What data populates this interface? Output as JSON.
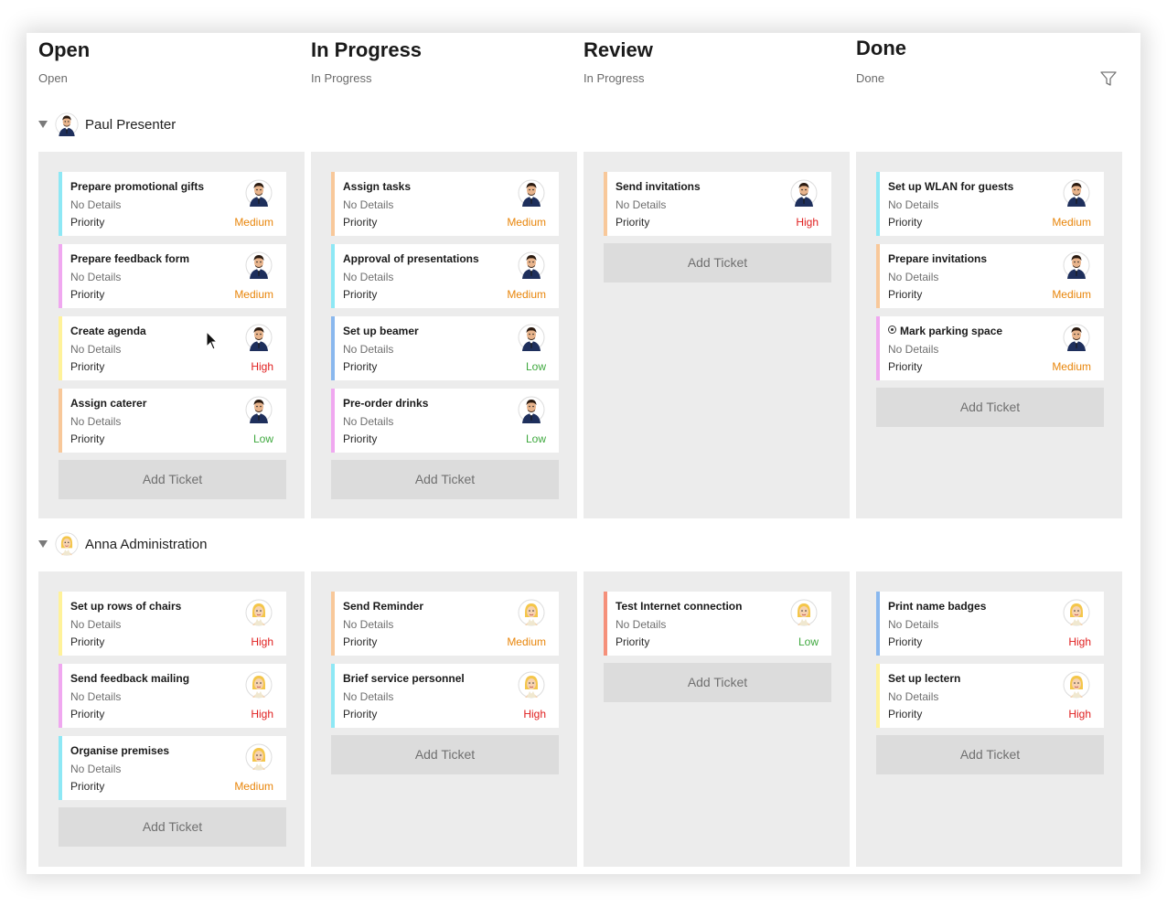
{
  "columns": [
    {
      "title": "Open",
      "subtitle": "Open"
    },
    {
      "title": "In Progress",
      "subtitle": "In Progress"
    },
    {
      "title": "Review",
      "subtitle": "In Progress"
    },
    {
      "title": "Done",
      "subtitle": "Done"
    }
  ],
  "colors": {
    "medium": "#e8850a",
    "high": "#e02020",
    "low": "#3ea83e",
    "lane_bg": "#ececec",
    "cyan": "#8ee8f5",
    "pink": "#f0a8f0",
    "yellow": "#fff29a",
    "peach": "#f8c89a",
    "blue": "#8ab8ee",
    "salmon": "#f5907a"
  },
  "labels": {
    "details": "No Details",
    "priority": "Priority",
    "add_ticket": "Add Ticket"
  },
  "groups": [
    {
      "name": "Paul Presenter",
      "avatar": "man-avatar-icon",
      "lanes": [
        [
          {
            "title": "Prepare promotional gifts",
            "priority": "Medium",
            "accent": "cyan"
          },
          {
            "title": "Prepare feedback form",
            "priority": "Medium",
            "accent": "pink"
          },
          {
            "title": "Create agenda",
            "priority": "High",
            "accent": "yellow"
          },
          {
            "title": "Assign caterer",
            "priority": "Low",
            "accent": "peach"
          }
        ],
        [
          {
            "title": "Assign tasks",
            "priority": "Medium",
            "accent": "peach"
          },
          {
            "title": "Approval of presentations",
            "priority": "Medium",
            "accent": "cyan"
          },
          {
            "title": "Set up beamer",
            "priority": "Low",
            "accent": "blue"
          },
          {
            "title": "Pre-order drinks",
            "priority": "Low",
            "accent": "pink"
          }
        ],
        [
          {
            "title": "Send invitations",
            "priority": "High",
            "accent": "peach"
          }
        ],
        [
          {
            "title": "Set up WLAN for guests",
            "priority": "Medium",
            "accent": "cyan"
          },
          {
            "title": "Prepare invitations",
            "priority": "Medium",
            "accent": "peach"
          },
          {
            "title": "Mark parking space",
            "priority": "Medium",
            "accent": "pink",
            "icon": "target-icon"
          }
        ]
      ]
    },
    {
      "name": "Anna Administration",
      "avatar": "woman-avatar-icon",
      "lanes": [
        [
          {
            "title": "Set up rows of chairs",
            "priority": "High",
            "accent": "yellow"
          },
          {
            "title": "Send feedback mailing",
            "priority": "High",
            "accent": "pink"
          },
          {
            "title": "Organise premises",
            "priority": "Medium",
            "accent": "cyan"
          }
        ],
        [
          {
            "title": "Send Reminder",
            "priority": "Medium",
            "accent": "peach"
          },
          {
            "title": "Brief service personnel",
            "priority": "High",
            "accent": "cyan"
          }
        ],
        [
          {
            "title": "Test Internet connection",
            "priority": "Low",
            "accent": "salmon"
          }
        ],
        [
          {
            "title": "Print name badges",
            "priority": "High",
            "accent": "blue"
          },
          {
            "title": "Set up lectern",
            "priority": "High",
            "accent": "yellow"
          }
        ]
      ]
    }
  ]
}
